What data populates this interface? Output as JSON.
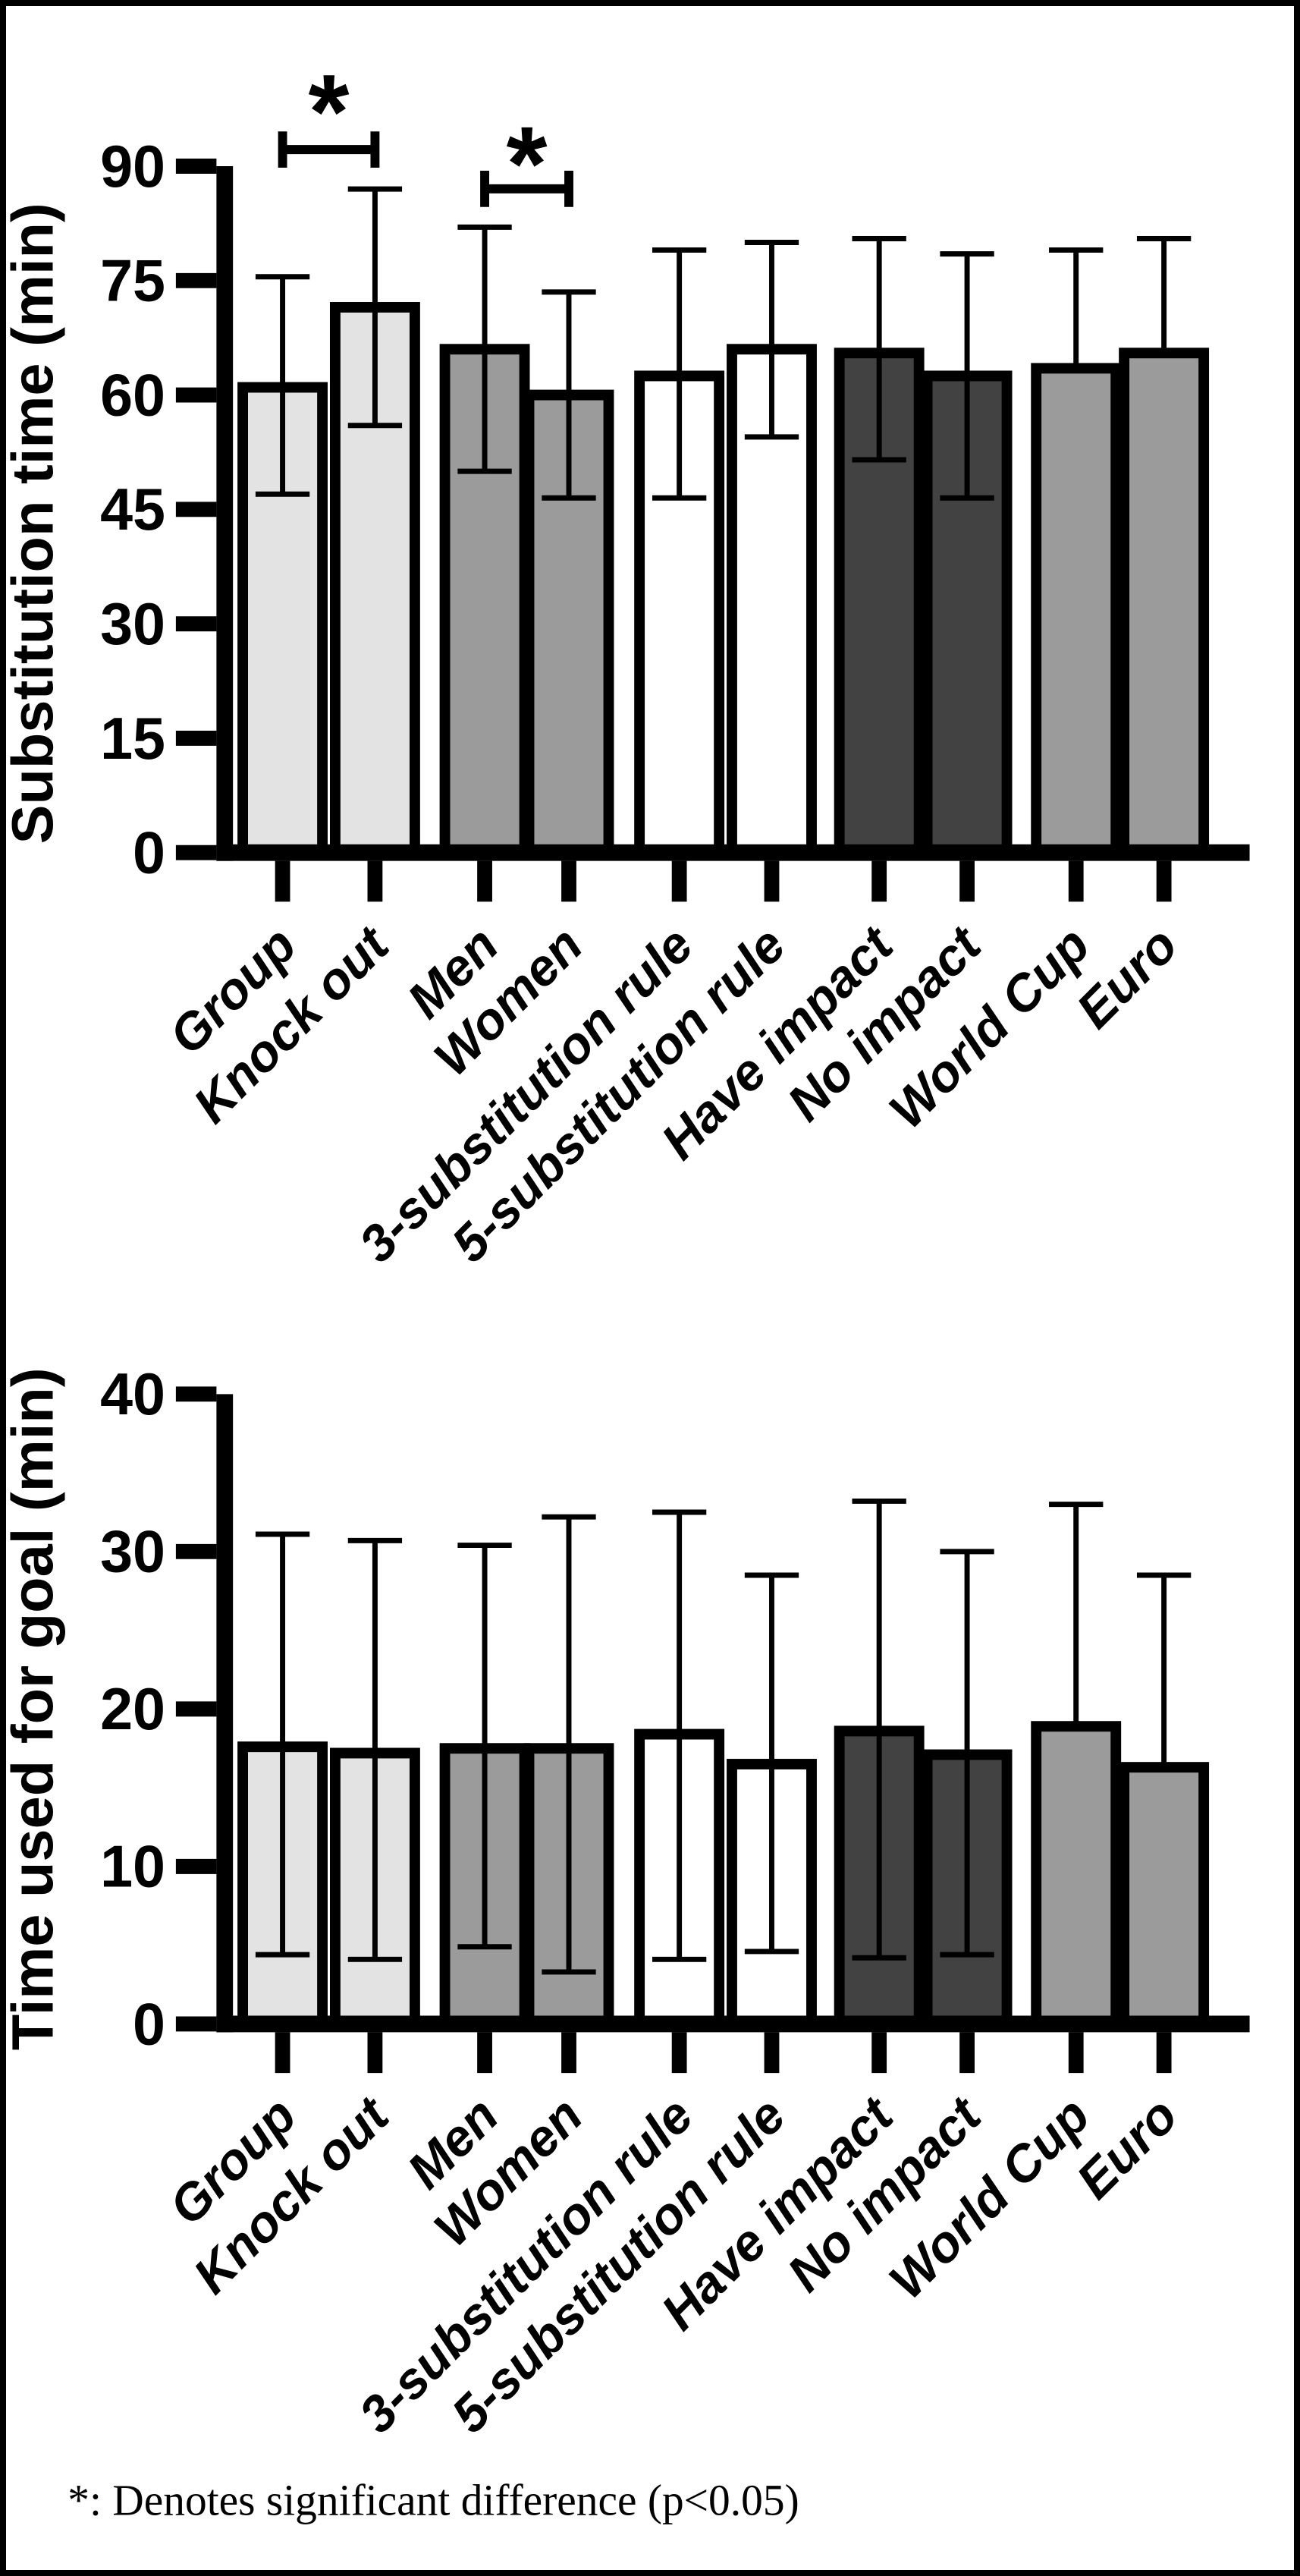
{
  "figure": {
    "footnote": "*: Denotes significant difference (p<0.05)",
    "frame_color": "#000000",
    "background_color": "#ffffff"
  },
  "chart_data": [
    {
      "type": "bar",
      "title": "",
      "xlabel": "",
      "ylabel": "Substitution time (min)",
      "ylim": [
        0,
        90
      ],
      "yticks": [
        0,
        15,
        30,
        45,
        60,
        75,
        90
      ],
      "grid": false,
      "legend": "none",
      "categories": [
        "Group",
        "Knock out",
        "Men",
        "Women",
        "3-substitution rule",
        "5-substitution rule",
        "Have impact",
        "No impact",
        "World Cup",
        "Euro"
      ],
      "values": [
        61,
        71.5,
        66,
        60,
        62.5,
        66,
        65.5,
        62.5,
        63.5,
        65.5
      ],
      "error_top_values": [
        75.5,
        87,
        82,
        73.5,
        79,
        80,
        80.5,
        78.5,
        79,
        80.5
      ],
      "error_bottom_values": [
        47,
        56,
        50,
        46.5,
        46.5,
        54.5,
        51.5,
        46.5,
        null,
        null
      ],
      "bar_colors": [
        "#e3e3e3",
        "#e3e3e3",
        "#9b9b9b",
        "#9b9b9b",
        "#ffffff",
        "#ffffff",
        "#424242",
        "#424242",
        "#9b9b9b",
        "#9b9b9b"
      ],
      "bar_edge_color": "#000000",
      "significance": [
        {
          "from": "Group",
          "to": "Knock out",
          "label": "*"
        },
        {
          "from": "Men",
          "to": "Women",
          "label": "*"
        }
      ]
    },
    {
      "type": "bar",
      "title": "",
      "xlabel": "",
      "ylabel": "Time used for goal (min)",
      "ylim": [
        0,
        40
      ],
      "yticks": [
        0,
        10,
        20,
        30,
        40
      ],
      "grid": false,
      "legend": "none",
      "categories": [
        "Group",
        "Knock out",
        "Men",
        "Women",
        "3-substitution rule",
        "5-substitution rule",
        "Have impact",
        "No impact",
        "World Cup",
        "Euro"
      ],
      "values": [
        17.6,
        17.2,
        17.5,
        17.5,
        18.4,
        16.5,
        18.6,
        17.1,
        18.9,
        16.3
      ],
      "error_top_values": [
        31.1,
        30.7,
        30.4,
        32.2,
        32.5,
        28.5,
        33.2,
        30.0,
        33.0,
        28.5
      ],
      "error_bottom_values": [
        4.4,
        4.1,
        4.9,
        3.3,
        4.1,
        4.6,
        4.2,
        4.4,
        null,
        null
      ],
      "bar_colors": [
        "#e3e3e3",
        "#e3e3e3",
        "#9b9b9b",
        "#9b9b9b",
        "#ffffff",
        "#ffffff",
        "#424242",
        "#424242",
        "#9b9b9b",
        "#9b9b9b"
      ],
      "bar_edge_color": "#000000",
      "significance": []
    }
  ]
}
